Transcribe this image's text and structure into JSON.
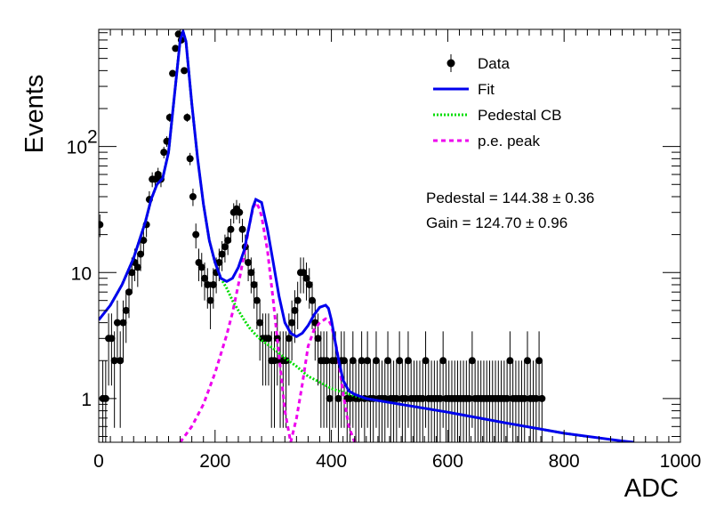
{
  "chart_data": {
    "type": "scatter",
    "xlabel": "ADC",
    "ylabel": "Events",
    "xlim": [
      0,
      1000
    ],
    "ylim": [
      0.45,
      850
    ],
    "yscale": "log",
    "grid": false,
    "legend_placement": "top-right",
    "x_ticks": [
      {
        "value": 0,
        "label": "0"
      },
      {
        "value": 200,
        "label": "200"
      },
      {
        "value": 400,
        "label": "400"
      },
      {
        "value": 600,
        "label": "600"
      },
      {
        "value": 800,
        "label": "800"
      },
      {
        "value": 1000,
        "label": "1000"
      }
    ],
    "y_ticks": [
      {
        "value": 1,
        "label": "1"
      },
      {
        "value": 10,
        "label": "10"
      },
      {
        "value": 100,
        "label": "10",
        "exponent": "2"
      }
    ],
    "legend": [
      {
        "label": "Data",
        "style": "marker",
        "color": "#000000"
      },
      {
        "label": "Fit",
        "style": "solid",
        "color": "#0000ee"
      },
      {
        "label": "Pedestal CB",
        "style": "dotted",
        "color": "#00dd00"
      },
      {
        "label": "p.e. peak",
        "style": "dashed",
        "color": "#ee00ee"
      }
    ],
    "annotations": [
      {
        "text": "Pedestal = 144.38 ± 0.36"
      },
      {
        "text": "Gain = 124.70 ± 0.96"
      }
    ],
    "series": [
      {
        "name": "Data",
        "kind": "points",
        "color": "#000000",
        "x": [
          2,
          7,
          12,
          17,
          22,
          27,
          32,
          37,
          42,
          47,
          52,
          57,
          62,
          67,
          72,
          77,
          82,
          87,
          92,
          97,
          102,
          107,
          112,
          117,
          122,
          127,
          132,
          137,
          142,
          147,
          152,
          157,
          162,
          167,
          172,
          177,
          182,
          187,
          192,
          197,
          202,
          207,
          212,
          217,
          222,
          227,
          232,
          237,
          242,
          247,
          252,
          257,
          262,
          267,
          272,
          277,
          282,
          287,
          292,
          297,
          302,
          307,
          312,
          317,
          322,
          327,
          332,
          337,
          342,
          347,
          352,
          357,
          362,
          367,
          372,
          377,
          382,
          387,
          392,
          397,
          402,
          407,
          412,
          417,
          422,
          427,
          432,
          437,
          442,
          447,
          452,
          457,
          462,
          467,
          472,
          477,
          482,
          487,
          492,
          497,
          502,
          507,
          512,
          517,
          522,
          527,
          532,
          537,
          542,
          547,
          552,
          557,
          562,
          567,
          572,
          577,
          582,
          587,
          592,
          597,
          602,
          607,
          612,
          617,
          622,
          627,
          632,
          637,
          642,
          647,
          652,
          657,
          662,
          667,
          672,
          677,
          682,
          687,
          692,
          697,
          702,
          707,
          712,
          717,
          722,
          727,
          732,
          737,
          742,
          747,
          752,
          757,
          762
        ],
        "y": [
          24,
          1,
          1,
          3,
          3,
          2,
          4,
          2,
          4,
          5,
          7,
          10,
          12,
          11,
          14,
          18,
          24,
          38,
          55,
          55,
          60,
          55,
          90,
          110,
          170,
          380,
          600,
          780,
          700,
          400,
          170,
          80,
          40,
          20,
          12,
          11,
          9,
          8,
          6,
          8,
          10,
          12,
          14,
          16,
          18,
          22,
          30,
          32,
          30,
          22,
          16,
          12,
          10,
          8,
          6,
          4,
          3,
          3,
          3,
          2,
          2,
          3,
          2,
          2,
          2,
          3,
          4,
          5,
          6,
          10,
          10,
          9,
          8,
          6,
          4,
          3,
          2,
          2,
          2,
          1,
          2,
          2,
          1,
          2,
          2,
          1,
          1,
          2,
          1,
          1,
          2,
          1,
          2,
          1,
          1,
          2,
          1,
          1,
          1,
          2,
          1,
          1,
          1,
          2,
          1,
          1,
          2,
          1,
          1,
          1,
          1,
          1,
          2,
          1,
          1,
          1,
          1,
          1,
          2,
          1,
          1,
          1,
          1,
          1,
          1,
          1,
          1,
          1,
          2,
          1,
          1,
          1,
          1,
          1,
          1,
          1,
          1,
          1,
          1,
          1,
          1,
          2,
          1,
          1,
          1,
          1,
          1,
          2,
          1,
          1,
          1,
          2,
          1
        ]
      },
      {
        "name": "Fit",
        "kind": "line",
        "color": "#0000ee",
        "x": [
          0,
          20,
          40,
          60,
          80,
          90,
          100,
          110,
          120,
          130,
          140,
          145,
          150,
          160,
          170,
          180,
          190,
          200,
          210,
          220,
          230,
          240,
          250,
          260,
          265,
          270,
          280,
          290,
          300,
          310,
          320,
          330,
          340,
          350,
          360,
          370,
          380,
          390,
          395,
          400,
          410,
          420,
          430,
          440,
          460,
          500,
          600,
          700,
          800,
          900,
          920
        ],
        "y": [
          4.2,
          5.5,
          8,
          13,
          25,
          38,
          50,
          56,
          90,
          250,
          700,
          820,
          680,
          220,
          80,
          35,
          18,
          12,
          9,
          8.5,
          9,
          11,
          15,
          25,
          33,
          38,
          36,
          22,
          12,
          6.5,
          4,
          3.3,
          3.1,
          3.3,
          3.8,
          4.6,
          5.3,
          5.5,
          5.2,
          4.2,
          2.3,
          1.4,
          1.15,
          1.08,
          1.0,
          0.93,
          0.78,
          0.64,
          0.53,
          0.46,
          0.45
        ]
      },
      {
        "name": "Pedestal CB",
        "kind": "line",
        "color": "#00dd00",
        "x": [
          20,
          40,
          60,
          80,
          90,
          100,
          110,
          120,
          130,
          140,
          145,
          150,
          160,
          170,
          180,
          190,
          200,
          210,
          220,
          230,
          240,
          250,
          260,
          270,
          280,
          300,
          320,
          340,
          360,
          380,
          400,
          420,
          440,
          460,
          500,
          600,
          700,
          800,
          840
        ],
        "y": [
          5.5,
          8,
          13,
          25,
          38,
          50,
          56,
          90,
          250,
          700,
          820,
          680,
          220,
          80,
          35,
          18,
          12,
          9,
          7.5,
          6,
          5,
          4.2,
          3.6,
          3.2,
          2.9,
          2.5,
          2.1,
          1.8,
          1.5,
          1.35,
          1.2,
          1.12,
          1.05,
          1.0,
          0.93,
          0.78,
          0.64,
          0.53,
          0.5
        ]
      },
      {
        "name": "p.e. peak",
        "kind": "line",
        "color": "#ee00ee",
        "x": [
          140,
          160,
          180,
          200,
          220,
          230,
          240,
          250,
          260,
          265,
          270,
          275,
          280,
          290,
          300,
          310,
          320,
          330,
          340,
          350,
          360,
          370,
          380,
          390,
          395,
          400,
          410,
          420,
          430,
          440
        ],
        "y": [
          0.45,
          0.6,
          0.9,
          1.6,
          3.2,
          4.8,
          8,
          14,
          25,
          32,
          36,
          33,
          28,
          15,
          6,
          2.2,
          0.8,
          0.45,
          0.7,
          1.3,
          2.6,
          3.5,
          4.0,
          4.3,
          4.2,
          3.8,
          2.4,
          1.1,
          0.6,
          0.45
        ]
      }
    ]
  }
}
